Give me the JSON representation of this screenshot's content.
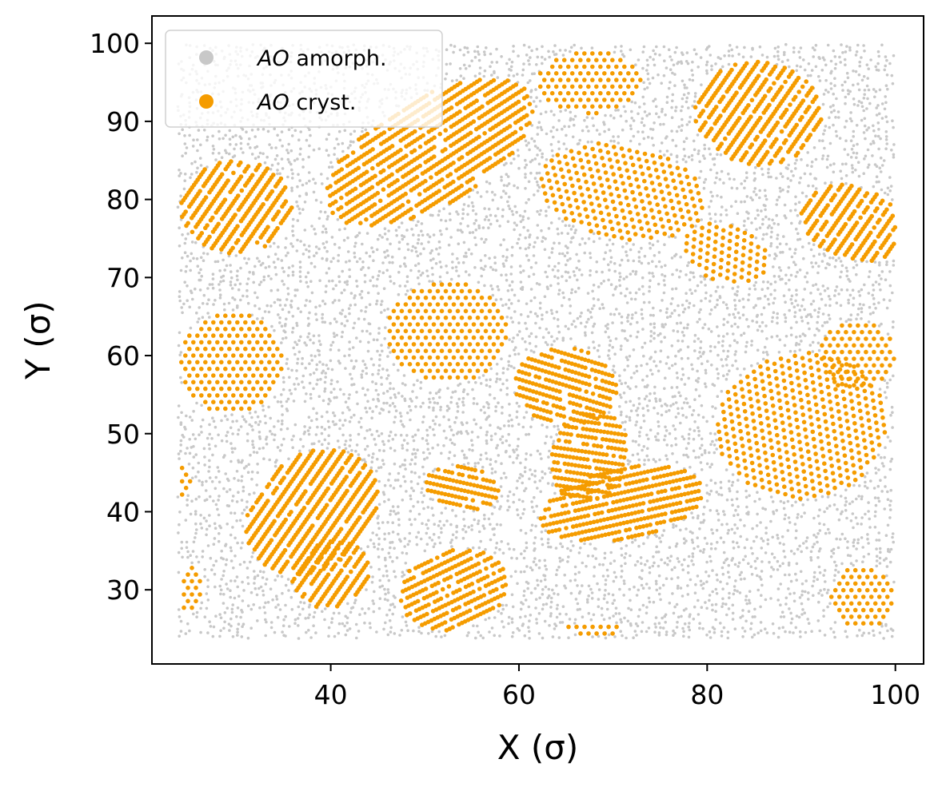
{
  "chart_data": {
    "type": "scatter",
    "xlabel": "X (σ)",
    "ylabel": "Y (σ)",
    "xlim": [
      21,
      103
    ],
    "ylim": [
      20.5,
      103.5
    ],
    "xticks": [
      40,
      60,
      80,
      100
    ],
    "yticks": [
      30,
      40,
      50,
      60,
      70,
      80,
      90,
      100
    ],
    "grid": false,
    "legend_position": "upper left",
    "particle_region": {
      "x": [
        24,
        100
      ],
      "y": [
        24,
        100
      ]
    },
    "series": [
      {
        "name": "AO amorph.",
        "legend_italic": "AO",
        "legend_rest": " amorph.",
        "color": "#c8c8c8",
        "description_role": "background",
        "note": "densely packed amorphous particles filling the box between crystalline domains"
      },
      {
        "name": "AO cryst.",
        "legend_italic": "AO",
        "legend_rest": " cryst.",
        "color": "#f59c00",
        "domains": [
          {
            "center": [
              30,
              79
            ],
            "radius": [
              6,
              6
            ],
            "angle": 60,
            "kind": "rods"
          },
          {
            "center": [
              50.5,
              86
            ],
            "radius": [
              13,
              6.5
            ],
            "angle": 38,
            "kind": "rods"
          },
          {
            "center": [
              67.5,
              95
            ],
            "radius": [
              5.5,
              4
            ],
            "angle": 0,
            "kind": "dots"
          },
          {
            "center": [
              85.5,
              91
            ],
            "radius": [
              6.5,
              7
            ],
            "angle": 60,
            "kind": "rods"
          },
          {
            "center": [
              71,
              81
            ],
            "radius": [
              9,
              6
            ],
            "angle": -15,
            "kind": "dots"
          },
          {
            "center": [
              82,
              73
            ],
            "radius": [
              5,
              3.5
            ],
            "angle": -30,
            "kind": "dots"
          },
          {
            "center": [
              95.5,
              77
            ],
            "radius": [
              4.5,
              6
            ],
            "angle": 60,
            "kind": "rods"
          },
          {
            "center": [
              29.5,
              59
            ],
            "radius": [
              5.5,
              6.5
            ],
            "angle": 0,
            "kind": "dots"
          },
          {
            "center": [
              52.5,
              63
            ],
            "radius": [
              6.5,
              6.5
            ],
            "angle": 0,
            "kind": "dots"
          },
          {
            "center": [
              65,
              56
            ],
            "radius": [
              5.5,
              5
            ],
            "angle": -20,
            "kind": "rods"
          },
          {
            "center": [
              67.5,
              47
            ],
            "radius": [
              4,
              6
            ],
            "angle": -10,
            "kind": "rods"
          },
          {
            "center": [
              96,
              60
            ],
            "radius": [
              4,
              4.5
            ],
            "angle": 0,
            "kind": "dots"
          },
          {
            "center": [
              90,
              51
            ],
            "radius": [
              9,
              9.5
            ],
            "angle": -20,
            "kind": "dots"
          },
          {
            "center": [
              54,
              43
            ],
            "radius": [
              4,
              2.8
            ],
            "angle": -15,
            "kind": "rods"
          },
          {
            "center": [
              71,
              41
            ],
            "radius": [
              9,
              4.5
            ],
            "angle": 15,
            "kind": "rods"
          },
          {
            "center": [
              38,
              40
            ],
            "radius": [
              8.5,
              6.5
            ],
            "angle": 60,
            "kind": "rods"
          },
          {
            "center": [
              40,
              32
            ],
            "radius": [
              4.5,
              4
            ],
            "angle": 60,
            "kind": "rods"
          },
          {
            "center": [
              53,
              30
            ],
            "radius": [
              6,
              5
            ],
            "angle": 30,
            "kind": "rods"
          },
          {
            "center": [
              25,
              30
            ],
            "radius": [
              1.5,
              3
            ],
            "angle": 0,
            "kind": "dots"
          },
          {
            "center": [
              24.3,
              44
            ],
            "radius": [
              0.8,
              2.5
            ],
            "angle": 0,
            "kind": "dots"
          },
          {
            "center": [
              68,
              25
            ],
            "radius": [
              3,
              0.8
            ],
            "angle": 0,
            "kind": "dots"
          },
          {
            "center": [
              96.5,
              29
            ],
            "radius": [
              3.5,
              4
            ],
            "angle": 0,
            "kind": "dots"
          }
        ]
      }
    ]
  }
}
